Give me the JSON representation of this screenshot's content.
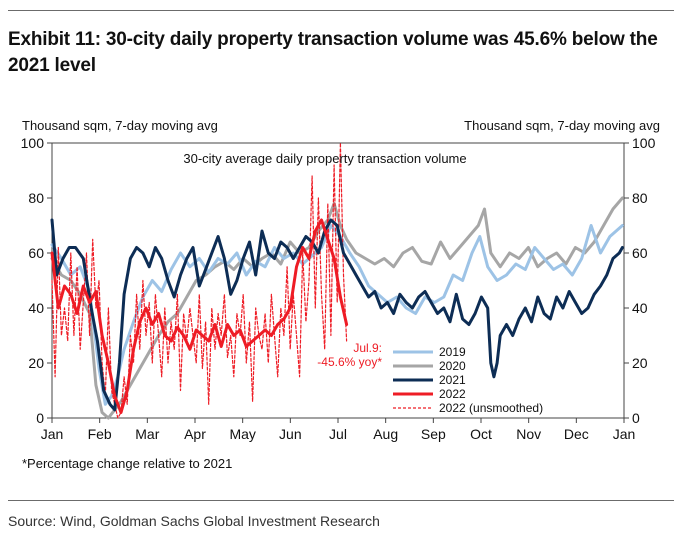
{
  "header": {
    "title": "Exhibit 11: 30-city daily property transaction volume was 45.6% below the 2021 level"
  },
  "footer": {
    "note": "*Percentage change relative to 2021",
    "source": "Source: Wind, Goldman Sachs Global Investment Research"
  },
  "chart_data": {
    "type": "line",
    "title": "30-city average daily property transaction volume",
    "ylabel_left": "Thousand sqm, 7-day moving avg",
    "ylabel_right": "Thousand sqm, 7-day moving avg",
    "x_ticks": [
      "Jan",
      "Feb",
      "Mar",
      "Apr",
      "May",
      "Jun",
      "Jul",
      "Aug",
      "Sep",
      "Oct",
      "Nov",
      "Dec",
      "Jan"
    ],
    "x_unit": "day of year (0 = Jan 1)",
    "xlim": [
      0,
      365
    ],
    "ylim": [
      0,
      100
    ],
    "y_ticks": [
      0,
      20,
      40,
      60,
      80,
      100
    ],
    "grid": false,
    "legend_position": "bottom-center",
    "annotation": {
      "lines": [
        "Jul.9:",
        "-45.6% yoy*"
      ],
      "color": "#ee1c25"
    },
    "series": [
      {
        "name": "2019",
        "color": "#9dc3e6",
        "style": "solid",
        "x": [
          0,
          6,
          12,
          18,
          24,
          30,
          34,
          38,
          42,
          46,
          52,
          58,
          64,
          70,
          76,
          82,
          88,
          94,
          100,
          106,
          112,
          118,
          124,
          130,
          136,
          142,
          148,
          154,
          160,
          166,
          172,
          178,
          184,
          190,
          196,
          202,
          208,
          214,
          220,
          226,
          232,
          238,
          244,
          250,
          256,
          262,
          268,
          273,
          278,
          284,
          290,
          296,
          302,
          308,
          314,
          320,
          326,
          332,
          338,
          344,
          350,
          356,
          364
        ],
        "values": [
          63,
          58,
          52,
          55,
          46,
          18,
          5,
          8,
          15,
          25,
          35,
          44,
          50,
          46,
          54,
          60,
          55,
          58,
          53,
          58,
          56,
          60,
          52,
          57,
          55,
          62,
          58,
          60,
          56,
          59,
          62,
          70,
          66,
          60,
          55,
          48,
          45,
          42,
          44,
          40,
          38,
          44,
          42,
          44,
          52,
          50,
          60,
          66,
          55,
          50,
          52,
          56,
          54,
          62,
          58,
          54,
          56,
          52,
          58,
          70,
          60,
          66,
          70
        ]
      },
      {
        "name": "2020",
        "color": "#a6a6a6",
        "style": "solid",
        "x": [
          0,
          6,
          12,
          18,
          24,
          28,
          32,
          36,
          40,
          44,
          50,
          56,
          62,
          68,
          74,
          80,
          86,
          92,
          98,
          104,
          110,
          116,
          122,
          128,
          134,
          140,
          146,
          152,
          158,
          164,
          170,
          176,
          180,
          184,
          188,
          194,
          200,
          206,
          212,
          218,
          224,
          230,
          236,
          242,
          248,
          254,
          260,
          266,
          272,
          276,
          280,
          286,
          292,
          298,
          304,
          310,
          316,
          322,
          328,
          334,
          340,
          346,
          352,
          358,
          364
        ],
        "values": [
          58,
          52,
          50,
          45,
          38,
          12,
          2,
          0,
          3,
          6,
          12,
          18,
          24,
          30,
          35,
          38,
          44,
          50,
          52,
          55,
          57,
          54,
          58,
          55,
          58,
          60,
          56,
          64,
          60,
          62,
          68,
          72,
          78,
          70,
          65,
          60,
          58,
          56,
          58,
          55,
          60,
          62,
          57,
          56,
          64,
          58,
          62,
          66,
          70,
          76,
          60,
          55,
          60,
          58,
          62,
          55,
          58,
          60,
          56,
          62,
          60,
          64,
          70,
          76,
          80
        ]
      },
      {
        "name": "2021",
        "color": "#0d2d55",
        "style": "solid",
        "x": [
          0,
          3,
          7,
          11,
          15,
          20,
          25,
          29,
          33,
          37,
          40,
          43,
          46,
          50,
          54,
          58,
          62,
          66,
          70,
          74,
          78,
          82,
          86,
          90,
          94,
          98,
          102,
          106,
          110,
          114,
          118,
          122,
          126,
          130,
          134,
          138,
          142,
          146,
          150,
          154,
          158,
          162,
          166,
          170,
          174,
          178,
          182,
          186,
          190,
          194,
          198,
          202,
          206,
          210,
          214,
          218,
          222,
          226,
          230,
          234,
          238,
          242,
          246,
          250,
          254,
          258,
          262,
          266,
          270,
          274,
          278,
          280,
          282,
          284,
          286,
          290,
          294,
          298,
          302,
          306,
          310,
          314,
          318,
          322,
          326,
          330,
          334,
          338,
          342,
          346,
          350,
          354,
          358,
          362,
          364
        ],
        "values": [
          72,
          52,
          58,
          62,
          62,
          58,
          40,
          28,
          10,
          5,
          3,
          20,
          45,
          58,
          62,
          60,
          55,
          62,
          58,
          50,
          44,
          52,
          58,
          62,
          48,
          54,
          60,
          66,
          58,
          45,
          50,
          58,
          64,
          52,
          68,
          60,
          58,
          64,
          62,
          58,
          62,
          66,
          64,
          60,
          68,
          72,
          70,
          60,
          56,
          52,
          48,
          44,
          46,
          40,
          42,
          38,
          45,
          42,
          40,
          44,
          46,
          42,
          38,
          40,
          35,
          45,
          36,
          34,
          38,
          44,
          40,
          20,
          15,
          20,
          30,
          34,
          30,
          36,
          40,
          35,
          44,
          38,
          36,
          44,
          40,
          46,
          42,
          38,
          40,
          45,
          48,
          52,
          58,
          60,
          62
        ]
      },
      {
        "name": "2022",
        "color": "#ee1c25",
        "style": "solid",
        "x": [
          0,
          4,
          8,
          12,
          16,
          20,
          24,
          28,
          32,
          36,
          40,
          44,
          48,
          52,
          56,
          60,
          64,
          68,
          72,
          76,
          80,
          84,
          88,
          92,
          96,
          100,
          104,
          108,
          112,
          116,
          120,
          124,
          128,
          132,
          136,
          140,
          144,
          148,
          152,
          156,
          160,
          164,
          168,
          172,
          176,
          180,
          184,
          188
        ],
        "values": [
          60,
          40,
          48,
          45,
          38,
          48,
          42,
          46,
          30,
          20,
          8,
          2,
          10,
          25,
          35,
          40,
          34,
          38,
          30,
          28,
          33,
          30,
          25,
          32,
          30,
          28,
          34,
          26,
          34,
          30,
          32,
          26,
          28,
          30,
          32,
          30,
          34,
          36,
          40,
          55,
          62,
          58,
          68,
          72,
          65,
          58,
          44,
          34
        ]
      },
      {
        "name": "2022 (unsmoothed)",
        "color": "#ee1c25",
        "style": "dashed",
        "x": [
          0,
          2,
          4,
          6,
          8,
          10,
          12,
          14,
          16,
          18,
          20,
          22,
          24,
          26,
          28,
          30,
          32,
          34,
          36,
          38,
          40,
          42,
          44,
          46,
          48,
          50,
          52,
          54,
          56,
          58,
          60,
          62,
          64,
          66,
          68,
          70,
          72,
          74,
          76,
          78,
          80,
          82,
          84,
          86,
          88,
          90,
          92,
          94,
          96,
          98,
          100,
          102,
          104,
          106,
          108,
          110,
          112,
          114,
          116,
          118,
          120,
          122,
          124,
          126,
          128,
          130,
          132,
          134,
          136,
          138,
          140,
          142,
          144,
          146,
          148,
          150,
          152,
          154,
          156,
          158,
          160,
          162,
          164,
          166,
          168,
          170,
          172,
          174,
          176,
          178,
          180,
          182,
          184,
          186,
          188
        ],
        "values": [
          50,
          15,
          62,
          30,
          40,
          28,
          60,
          30,
          55,
          25,
          42,
          60,
          30,
          65,
          40,
          50,
          20,
          8,
          40,
          10,
          5,
          0,
          2,
          15,
          5,
          30,
          20,
          45,
          25,
          50,
          30,
          42,
          20,
          45,
          30,
          15,
          40,
          20,
          35,
          25,
          45,
          10,
          38,
          28,
          40,
          30,
          20,
          45,
          18,
          35,
          5,
          40,
          25,
          38,
          30,
          45,
          22,
          30,
          15,
          38,
          30,
          45,
          20,
          35,
          6,
          40,
          30,
          25,
          38,
          20,
          45,
          30,
          15,
          40,
          30,
          55,
          25,
          45,
          30,
          15,
          60,
          35,
          50,
          88,
          40,
          80,
          45,
          25,
          78,
          30,
          92,
          42,
          100,
          52,
          28
        ]
      }
    ]
  }
}
